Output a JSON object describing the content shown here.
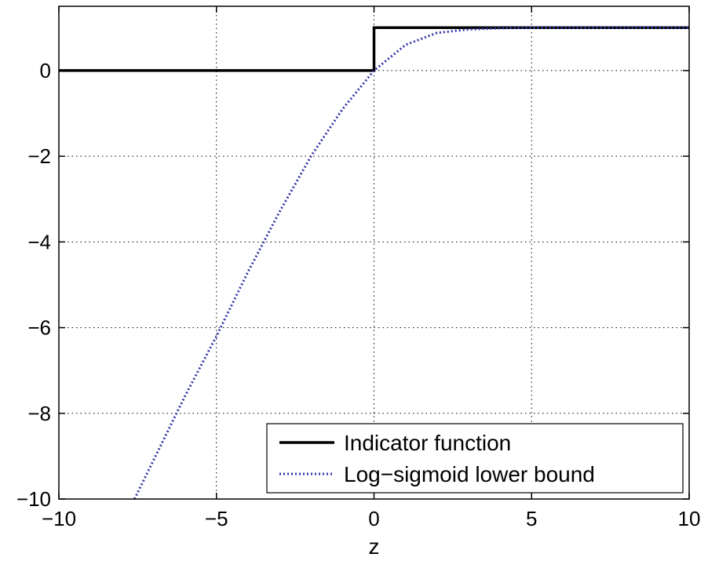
{
  "chart_data": {
    "type": "line",
    "title": "",
    "xlabel": "z",
    "ylabel": "",
    "xlim": [
      -10,
      10
    ],
    "ylim": [
      -10,
      1.5
    ],
    "xticks": [
      -10,
      -5,
      0,
      5,
      10
    ],
    "yticks": [
      -10,
      -8,
      -6,
      -4,
      -2,
      0
    ],
    "xtick_labels": [
      "−10",
      "−5",
      "0",
      "5",
      "10"
    ],
    "ytick_labels": [
      "−10",
      "−8",
      "−6",
      "−4",
      "−2",
      "0"
    ],
    "grid": true,
    "legend_position": "bottom-right",
    "series": [
      {
        "name": "Indicator function",
        "color": "#000000",
        "style": "solid",
        "x": [
          -10,
          0,
          0,
          10
        ],
        "y": [
          0,
          0,
          1,
          1
        ]
      },
      {
        "name": "Log−sigmoid lower bound",
        "color": "#3333aa",
        "style": "dotted",
        "x": [
          -7.6,
          -7,
          -6,
          -5,
          -4,
          -3,
          -2,
          -1,
          0,
          1,
          2,
          3,
          4,
          5,
          10
        ],
        "y": [
          -10,
          -9.1,
          -7.6,
          -6.2,
          -4.7,
          -3.3,
          -2.0,
          -0.9,
          0.0,
          0.6,
          0.88,
          0.96,
          0.99,
          1.0,
          1.0
        ]
      }
    ]
  }
}
